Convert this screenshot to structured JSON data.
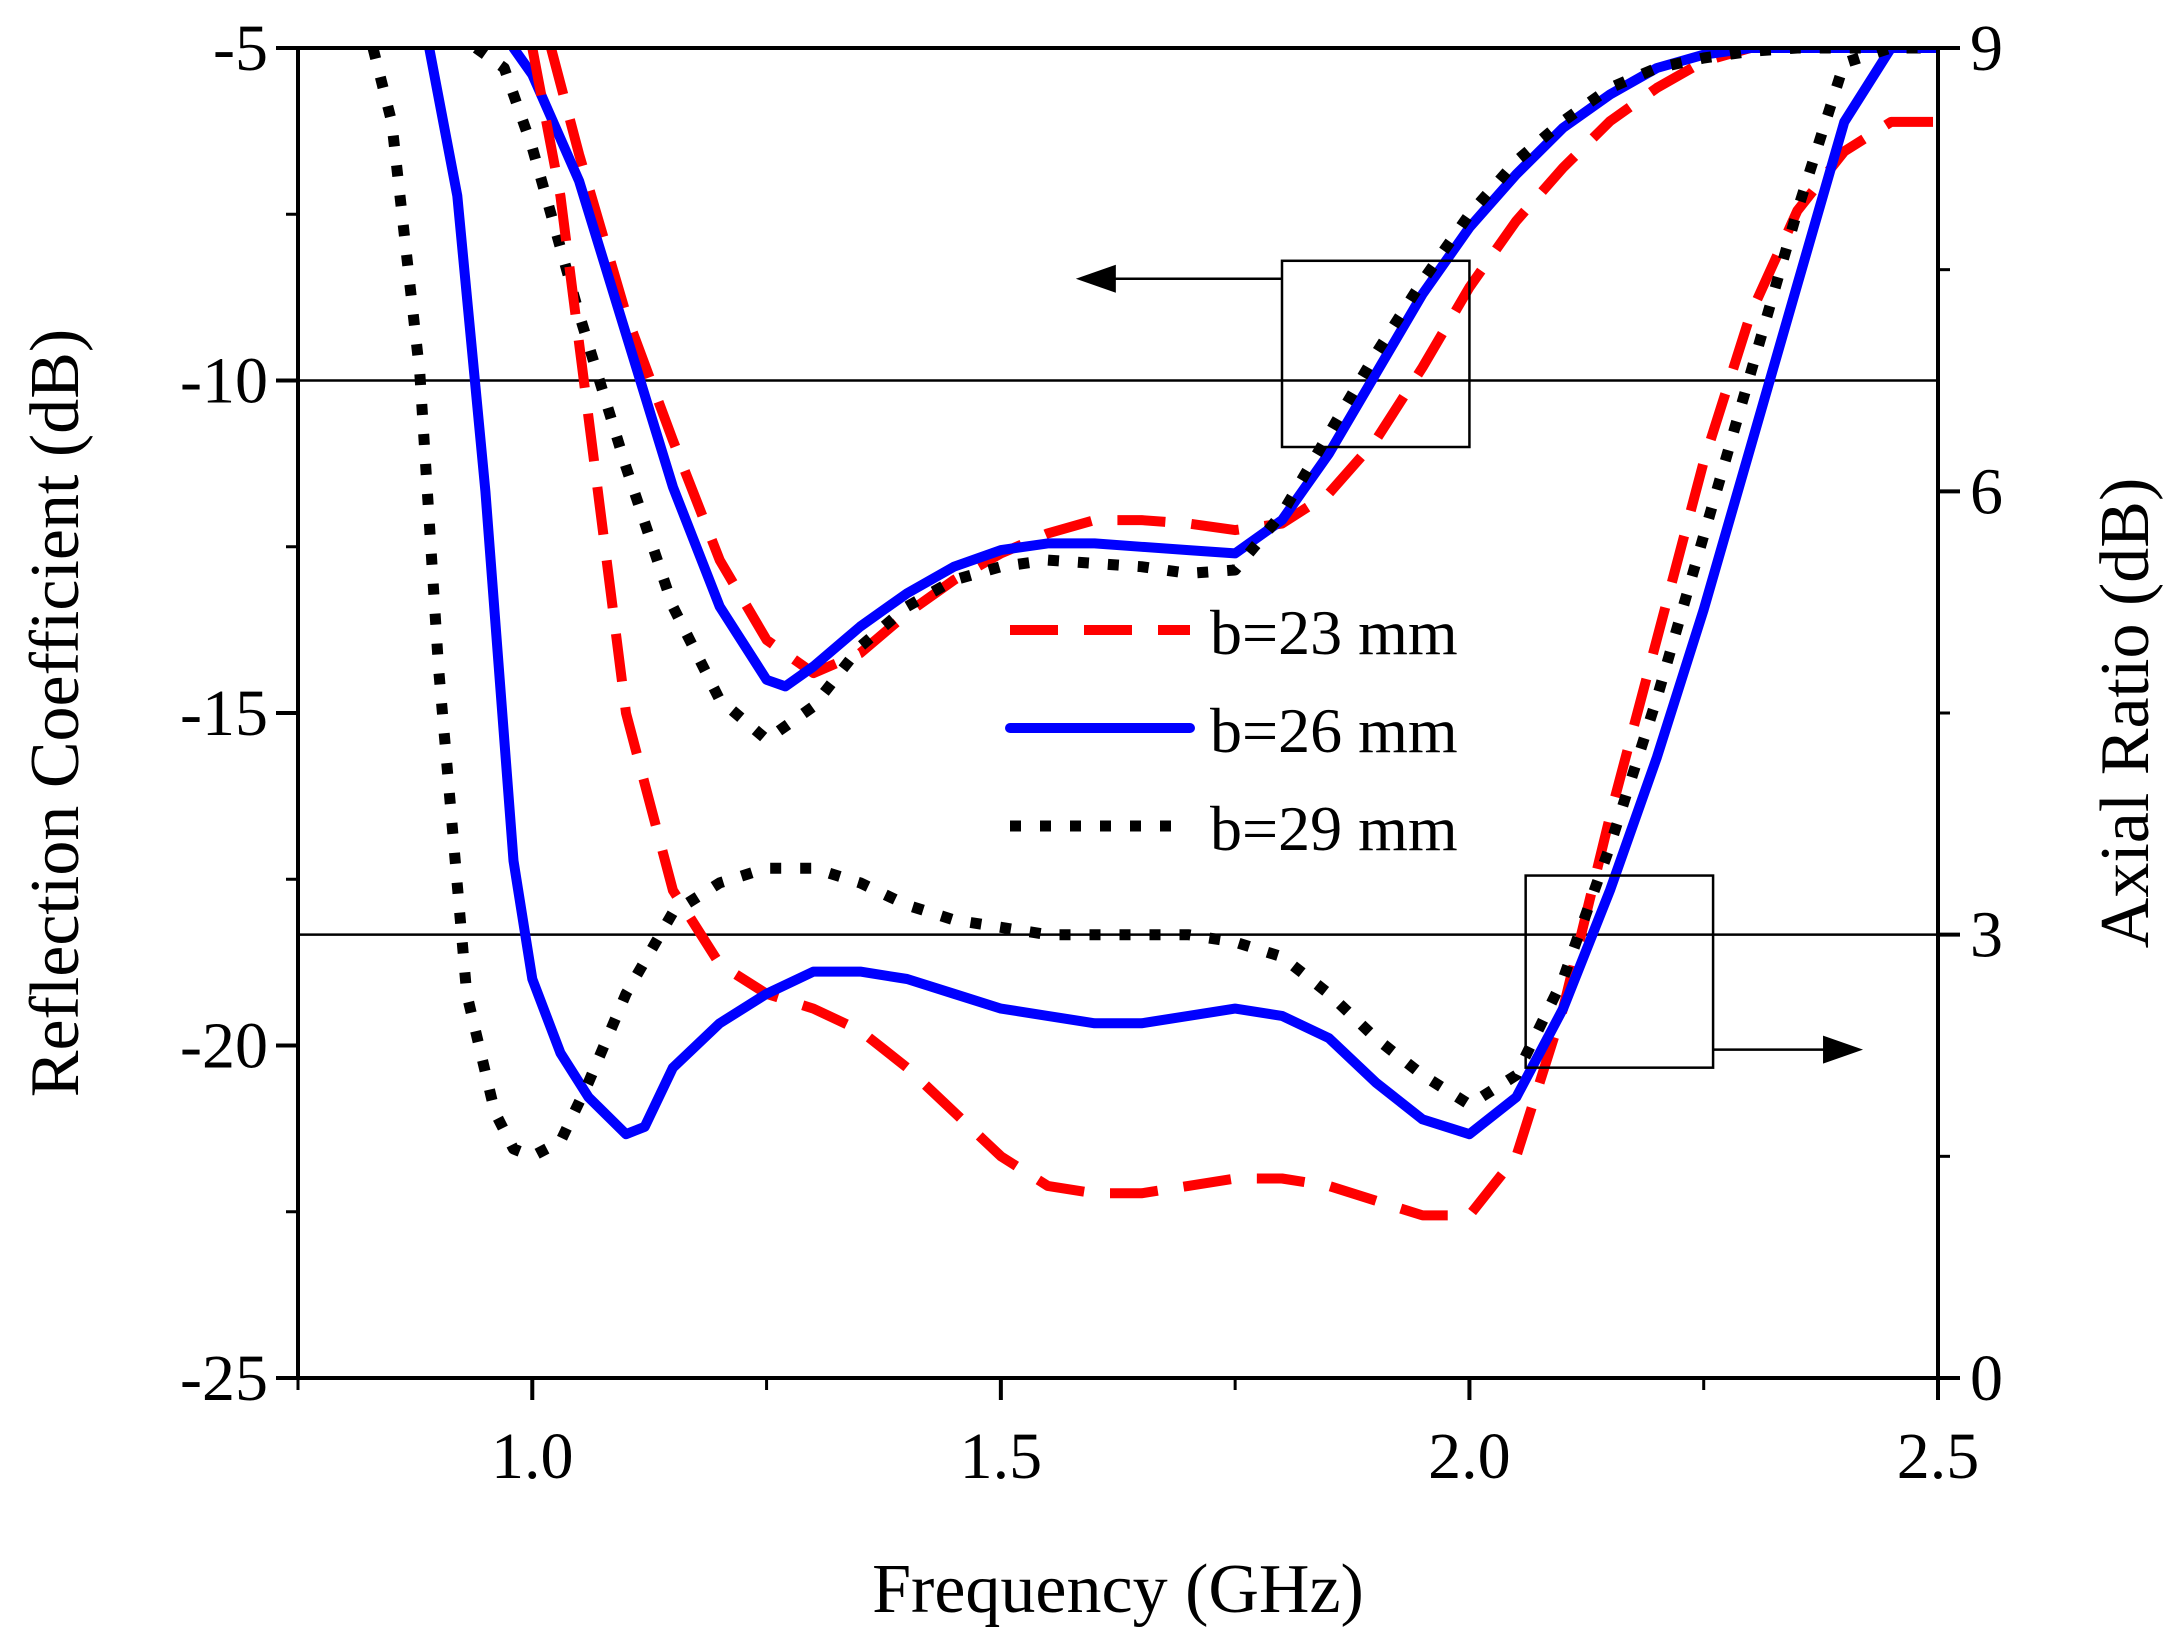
{
  "chart_data": {
    "type": "line",
    "xlabel": "Frequency (GHz)",
    "ylabel_left": "Reflection Coefficient (dB)",
    "ylabel_right": "Axial Ratio (dB)",
    "xlim": [
      0.75,
      2.5
    ],
    "ylim_left": [
      -25,
      -5
    ],
    "ylim_right": [
      0,
      9
    ],
    "x_ticks": [
      1.0,
      1.5,
      2.0,
      2.5
    ],
    "x_tick_labels": [
      "1.0",
      "1.5",
      "2.0",
      "2.5"
    ],
    "y_left_ticks": [
      -25,
      -20,
      -15,
      -10,
      -5
    ],
    "y_left_tick_labels": [
      "-25",
      "-20",
      "-15",
      "-10",
      "-5"
    ],
    "y_right_ticks": [
      0,
      3,
      6,
      9
    ],
    "y_right_tick_labels": [
      "0",
      "3",
      "6",
      "9"
    ],
    "reference_lines": [
      {
        "name": "reflection-threshold",
        "axis": "left",
        "value": -10
      },
      {
        "name": "axial-ratio-threshold",
        "axis": "right",
        "value": 3
      }
    ],
    "legend": [
      {
        "label": "b=23 mm",
        "color": "#ff0000",
        "style": "dashed"
      },
      {
        "label": "b=26 mm",
        "color": "#0000ff",
        "style": "solid"
      },
      {
        "label": "b=29 mm",
        "color": "#000000",
        "style": "dotted"
      }
    ],
    "annotations": [
      {
        "text": "",
        "points_to": "left-axis",
        "box_x": [
          1.8,
          2.0
        ],
        "box_y": [
          -11,
          -8.2
        ],
        "arrow_to_x": 1.58
      },
      {
        "text": "",
        "points_to": "right-axis",
        "box_x": [
          2.06,
          2.26
        ],
        "box_y_right": [
          2.1,
          3.4
        ],
        "arrow_to_x": 2.42
      }
    ],
    "series": [
      {
        "name": "b=23 mm",
        "axis": "left",
        "color": "#ff0000",
        "style": "dashed",
        "x": [
          1.02,
          1.05,
          1.1,
          1.15,
          1.2,
          1.25,
          1.3,
          1.35,
          1.4,
          1.45,
          1.5,
          1.55,
          1.6,
          1.65,
          1.7,
          1.75,
          1.8,
          1.85,
          1.9,
          1.95,
          2.0,
          2.05,
          2.1,
          2.15,
          2.2,
          2.25,
          2.3,
          2.35,
          2.4,
          2.45,
          2.5
        ],
        "y": [
          -5.0,
          -6.6,
          -9.0,
          -10.9,
          -12.7,
          -13.9,
          -14.4,
          -14.1,
          -13.5,
          -13.0,
          -12.6,
          -12.3,
          -12.1,
          -12.1,
          -12.15,
          -12.25,
          -12.15,
          -11.7,
          -10.9,
          -9.8,
          -8.6,
          -7.6,
          -6.8,
          -6.1,
          -5.6,
          -5.2,
          -5.0,
          -5.0,
          -5.0,
          -5.0,
          -5.0
        ]
      },
      {
        "name": "b=26 mm",
        "axis": "left",
        "color": "#0000ff",
        "style": "solid",
        "x": [
          0.98,
          1.0,
          1.05,
          1.1,
          1.15,
          1.2,
          1.25,
          1.27,
          1.3,
          1.35,
          1.4,
          1.45,
          1.5,
          1.55,
          1.6,
          1.65,
          1.7,
          1.75,
          1.8,
          1.85,
          1.9,
          1.95,
          2.0,
          2.05,
          2.1,
          2.15,
          2.2,
          2.25,
          2.3,
          2.35,
          2.4,
          2.45,
          2.5
        ],
        "y": [
          -5.0,
          -5.4,
          -7.0,
          -9.3,
          -11.6,
          -13.4,
          -14.5,
          -14.6,
          -14.3,
          -13.7,
          -13.2,
          -12.8,
          -12.55,
          -12.45,
          -12.45,
          -12.5,
          -12.55,
          -12.6,
          -12.1,
          -11.1,
          -9.9,
          -8.7,
          -7.7,
          -6.9,
          -6.2,
          -5.7,
          -5.3,
          -5.1,
          -5.0,
          -5.0,
          -5.0,
          -5.0,
          -5.0
        ]
      },
      {
        "name": "b=29 mm",
        "axis": "left",
        "color": "#000000",
        "style": "dotted",
        "x": [
          0.94,
          0.97,
          1.0,
          1.05,
          1.1,
          1.15,
          1.2,
          1.25,
          1.3,
          1.35,
          1.4,
          1.45,
          1.5,
          1.55,
          1.6,
          1.65,
          1.7,
          1.75,
          1.8,
          1.85,
          1.9,
          1.95,
          2.0,
          2.05,
          2.1,
          2.15,
          2.2,
          2.25,
          2.3,
          2.35,
          2.4,
          2.45,
          2.5
        ],
        "y": [
          -5.0,
          -5.3,
          -6.5,
          -9.0,
          -11.3,
          -13.4,
          -14.8,
          -15.4,
          -14.9,
          -14.0,
          -13.4,
          -13.0,
          -12.8,
          -12.7,
          -12.75,
          -12.8,
          -12.9,
          -12.85,
          -12.0,
          -10.8,
          -9.6,
          -8.5,
          -7.5,
          -6.7,
          -6.1,
          -5.6,
          -5.3,
          -5.15,
          -5.05,
          -5.0,
          -5.0,
          -5.0,
          -5.0
        ]
      },
      {
        "name": "b=23 mm",
        "axis": "right",
        "color": "#ff0000",
        "style": "dashed",
        "x": [
          1.0,
          1.03,
          1.06,
          1.1,
          1.15,
          1.2,
          1.25,
          1.3,
          1.35,
          1.4,
          1.45,
          1.5,
          1.55,
          1.6,
          1.65,
          1.7,
          1.75,
          1.8,
          1.85,
          1.9,
          1.95,
          2.0,
          2.05,
          2.1,
          2.15,
          2.2,
          2.25,
          2.3,
          2.35,
          2.4,
          2.45,
          2.5
        ],
        "y": [
          9.0,
          8.0,
          6.5,
          4.5,
          3.3,
          2.8,
          2.6,
          2.5,
          2.35,
          2.1,
          1.8,
          1.5,
          1.3,
          1.25,
          1.25,
          1.3,
          1.35,
          1.35,
          1.3,
          1.2,
          1.1,
          1.1,
          1.5,
          2.5,
          3.8,
          5.0,
          6.2,
          7.2,
          7.9,
          8.3,
          8.5,
          8.5
        ]
      },
      {
        "name": "b=26 mm",
        "axis": "right",
        "color": "#0000ff",
        "style": "solid",
        "x": [
          0.89,
          0.92,
          0.95,
          0.98,
          1.0,
          1.03,
          1.06,
          1.1,
          1.12,
          1.15,
          1.2,
          1.25,
          1.3,
          1.35,
          1.4,
          1.45,
          1.5,
          1.55,
          1.6,
          1.65,
          1.7,
          1.75,
          1.8,
          1.85,
          1.9,
          1.95,
          2.0,
          2.05,
          2.1,
          2.15,
          2.2,
          2.25,
          2.3,
          2.35,
          2.4,
          2.45,
          2.5
        ],
        "y": [
          9.0,
          8.0,
          6.0,
          3.5,
          2.7,
          2.2,
          1.9,
          1.65,
          1.7,
          2.1,
          2.4,
          2.6,
          2.75,
          2.75,
          2.7,
          2.6,
          2.5,
          2.45,
          2.4,
          2.4,
          2.45,
          2.5,
          2.45,
          2.3,
          2.0,
          1.75,
          1.65,
          1.9,
          2.5,
          3.3,
          4.2,
          5.2,
          6.3,
          7.4,
          8.5,
          9.0,
          9.0
        ]
      },
      {
        "name": "b=29 mm",
        "axis": "right",
        "color": "#000000",
        "style": "dotted",
        "x": [
          0.83,
          0.85,
          0.88,
          0.9,
          0.93,
          0.96,
          0.98,
          1.0,
          1.03,
          1.06,
          1.1,
          1.15,
          1.2,
          1.25,
          1.3,
          1.35,
          1.4,
          1.45,
          1.5,
          1.55,
          1.6,
          1.65,
          1.7,
          1.75,
          1.8,
          1.85,
          1.9,
          1.95,
          2.0,
          2.05,
          2.1,
          2.15,
          2.2,
          2.25,
          2.3,
          2.35,
          2.4,
          2.45,
          2.5
        ],
        "y": [
          9.0,
          8.5,
          6.8,
          4.8,
          2.6,
          1.8,
          1.55,
          1.5,
          1.6,
          2.0,
          2.6,
          3.15,
          3.35,
          3.45,
          3.45,
          3.35,
          3.2,
          3.1,
          3.05,
          3.0,
          3.0,
          3.0,
          3.0,
          2.95,
          2.85,
          2.6,
          2.3,
          2.05,
          1.85,
          2.05,
          2.7,
          3.6,
          4.6,
          5.7,
          6.8,
          7.9,
          8.9,
          9.0,
          9.0
        ]
      }
    ]
  }
}
